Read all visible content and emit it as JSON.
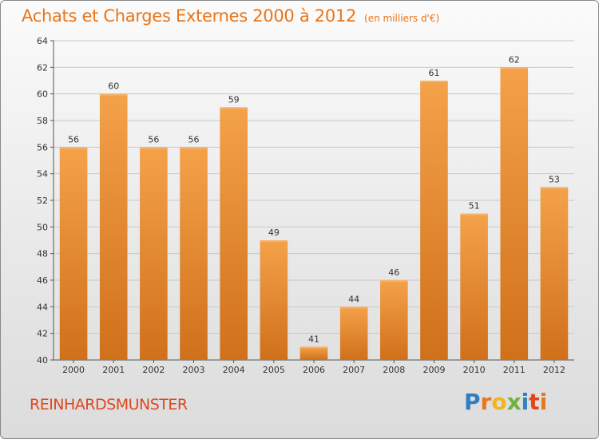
{
  "header": {
    "title": "Achats et Charges Externes 2000 à 2012",
    "subtitle": "(en milliers d'€)"
  },
  "footer": {
    "place": "REINHARDSMUNSTER",
    "logo_letters": [
      "P",
      "r",
      "o",
      "x",
      "i",
      "t",
      "i"
    ],
    "logo_colors": [
      "#2f7fc1",
      "#e8751a",
      "#f2b51c",
      "#6cb33f",
      "#2f7fc1",
      "#e0461e",
      "#e8751a"
    ]
  },
  "colors": {
    "bar_light": "#f4a24a",
    "bar_dark": "#d0701a",
    "title": "#e8751a",
    "place": "#e0461e",
    "grid": "#c8c8c8"
  },
  "chart_data": {
    "type": "bar",
    "title": "Achats et Charges Externes 2000 à 2012",
    "subtitle": "(en milliers d'€)",
    "xlabel": "",
    "ylabel": "",
    "categories": [
      "2000",
      "2001",
      "2002",
      "2003",
      "2004",
      "2005",
      "2006",
      "2007",
      "2008",
      "2009",
      "2010",
      "2011",
      "2012"
    ],
    "values": [
      56,
      60,
      56,
      56,
      59,
      49,
      41,
      44,
      46,
      61,
      51,
      62,
      53
    ],
    "ylim": [
      40,
      64
    ],
    "yticks": [
      40,
      42,
      44,
      46,
      48,
      50,
      52,
      54,
      56,
      58,
      60,
      62,
      64
    ],
    "grid": true,
    "data_labels": true
  }
}
